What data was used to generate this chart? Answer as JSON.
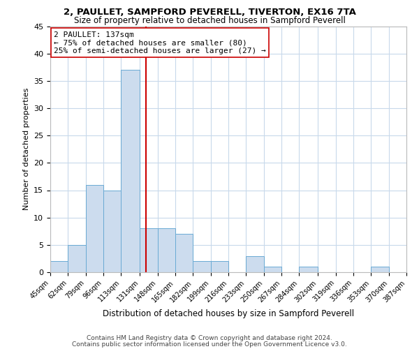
{
  "title_line1": "2, PAULLET, SAMPFORD PEVERELL, TIVERTON, EX16 7TA",
  "title_line2": "Size of property relative to detached houses in Sampford Peverell",
  "xlabel": "Distribution of detached houses by size in Sampford Peverell",
  "ylabel": "Number of detached properties",
  "footer_line1": "Contains HM Land Registry data © Crown copyright and database right 2024.",
  "footer_line2": "Contains public sector information licensed under the Open Government Licence v3.0.",
  "bar_edges": [
    45,
    62,
    79,
    96,
    113,
    131,
    148,
    165,
    182,
    199,
    216,
    233,
    250,
    267,
    284,
    302,
    319,
    336,
    353,
    370,
    387
  ],
  "bar_heights": [
    2,
    5,
    16,
    15,
    37,
    8,
    8,
    7,
    2,
    2,
    0,
    3,
    1,
    0,
    1,
    0,
    0,
    0,
    1,
    0
  ],
  "bar_color": "#ccdcee",
  "bar_edgecolor": "#6aaad4",
  "grid_color": "#c8d9eb",
  "vline_x": 137,
  "vline_color": "#cc0000",
  "annotation_title": "2 PAULLET: 137sqm",
  "annotation_line2": "← 75% of detached houses are smaller (80)",
  "annotation_line3": "25% of semi-detached houses are larger (27) →",
  "annotation_box_color": "#ffffff",
  "annotation_box_edgecolor": "#cc0000",
  "ylim": [
    0,
    45
  ],
  "yticks": [
    0,
    5,
    10,
    15,
    20,
    25,
    30,
    35,
    40,
    45
  ],
  "tick_labels": [
    "45sqm",
    "62sqm",
    "79sqm",
    "96sqm",
    "113sqm",
    "131sqm",
    "148sqm",
    "165sqm",
    "182sqm",
    "199sqm",
    "216sqm",
    "233sqm",
    "250sqm",
    "267sqm",
    "284sqm",
    "302sqm",
    "319sqm",
    "336sqm",
    "353sqm",
    "370sqm",
    "387sqm"
  ],
  "title1_fontsize": 9.5,
  "title2_fontsize": 8.5,
  "xlabel_fontsize": 8.5,
  "ylabel_fontsize": 8,
  "tick_fontsize": 7,
  "ytick_fontsize": 8,
  "footer_fontsize": 6.5,
  "ann_fontsize": 8
}
